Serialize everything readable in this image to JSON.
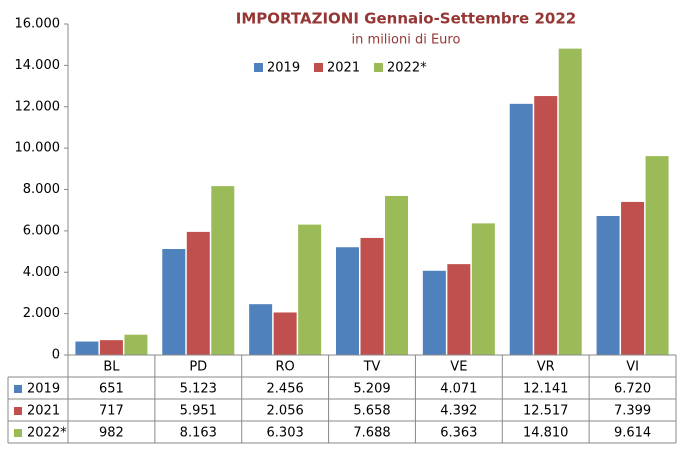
{
  "chart_data": {
    "type": "bar",
    "title": "IMPORTAZIONI Gennaio-Settembre 2022",
    "subtitle": "in milioni di Euro",
    "categories": [
      "BL",
      "PD",
      "RO",
      "TV",
      "VE",
      "VR",
      "VI"
    ],
    "series": [
      {
        "name": "2019",
        "color": "#4f81bd",
        "values": [
          651,
          5123,
          2456,
          5209,
          4071,
          12141,
          6720
        ],
        "value_labels": [
          "651",
          "5.123",
          "2.456",
          "5.209",
          "4.071",
          "12.141",
          "6.720"
        ]
      },
      {
        "name": "2021",
        "color": "#c0504d",
        "values": [
          717,
          5951,
          2056,
          5658,
          4392,
          12517,
          7399
        ],
        "value_labels": [
          "717",
          "5.951",
          "2.056",
          "5.658",
          "4.392",
          "12.517",
          "7.399"
        ]
      },
      {
        "name": "2022*",
        "color": "#9bbb59",
        "values": [
          982,
          8163,
          6303,
          7688,
          6363,
          14810,
          9614
        ],
        "value_labels": [
          "982",
          "8.163",
          "6.303",
          "7.688",
          "6.363",
          "14.810",
          "9.614"
        ]
      }
    ],
    "ylim": [
      0,
      16000
    ],
    "yticks": [
      0,
      {
        "value": 2000,
        "label": "2.000"
      },
      {
        "value": 4000,
        "label": "4.000"
      },
      {
        "value": 6000,
        "label": "6.000"
      },
      {
        "value": 8000,
        "label": "8.000"
      },
      {
        "value": 10000,
        "label": "10.000"
      },
      {
        "value": 12000,
        "label": "12.000"
      },
      {
        "value": 14000,
        "label": "14.000"
      },
      {
        "value": 16000,
        "label": "16.000"
      }
    ],
    "grid": false
  }
}
